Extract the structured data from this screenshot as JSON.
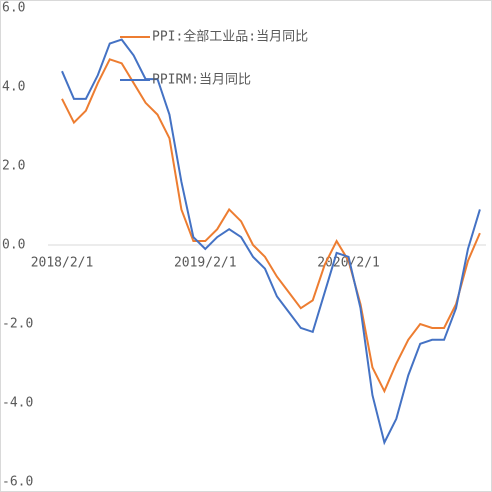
{
  "chart_data": {
    "type": "line",
    "categories": [
      "2018/2/1",
      null,
      null,
      null,
      null,
      null,
      null,
      null,
      null,
      null,
      null,
      null,
      "2019/2/1",
      null,
      null,
      null,
      null,
      null,
      null,
      null,
      null,
      null,
      null,
      null,
      "2020/2/1",
      null,
      null,
      null,
      null,
      null,
      null,
      null,
      null,
      null,
      null,
      null
    ],
    "series": [
      {
        "name": "PPI:全部工业品:当月同比",
        "color": "#ed7d31",
        "values": [
          3.7,
          3.1,
          3.4,
          4.1,
          4.7,
          4.6,
          4.1,
          3.6,
          3.3,
          2.7,
          0.9,
          0.1,
          0.1,
          0.4,
          0.9,
          0.6,
          0.0,
          -0.3,
          -0.8,
          -1.2,
          -1.6,
          -1.4,
          -0.5,
          0.1,
          -0.4,
          -1.5,
          -3.1,
          -3.7,
          -3.0,
          -2.4,
          -2.0,
          -2.1,
          -2.1,
          -1.5,
          -0.4,
          0.3
        ]
      },
      {
        "name": "PPIRM:当月同比",
        "color": "#4472c4",
        "values": [
          4.4,
          3.7,
          3.7,
          4.3,
          5.1,
          5.2,
          4.8,
          4.2,
          4.2,
          3.3,
          1.6,
          0.2,
          -0.1,
          0.2,
          0.4,
          0.2,
          -0.3,
          -0.6,
          -1.3,
          -1.7,
          -2.1,
          -2.2,
          -1.2,
          -0.2,
          -0.3,
          -1.6,
          -3.8,
          -5.0,
          -4.4,
          -3.3,
          -2.5,
          -2.4,
          -2.4,
          -1.6,
          -0.1,
          0.9
        ]
      }
    ],
    "ylim": [
      -6,
      6
    ],
    "yticks": [
      {
        "value": -6,
        "label": "-6.0"
      },
      {
        "value": -4,
        "label": "-4.0"
      },
      {
        "value": -2,
        "label": "-2.0"
      },
      {
        "value": 0,
        "label": "0.0"
      },
      {
        "value": 2,
        "label": "2.0"
      },
      {
        "value": 4,
        "label": "4.0"
      },
      {
        "value": 6,
        "label": "6.0"
      }
    ],
    "grid": false
  }
}
